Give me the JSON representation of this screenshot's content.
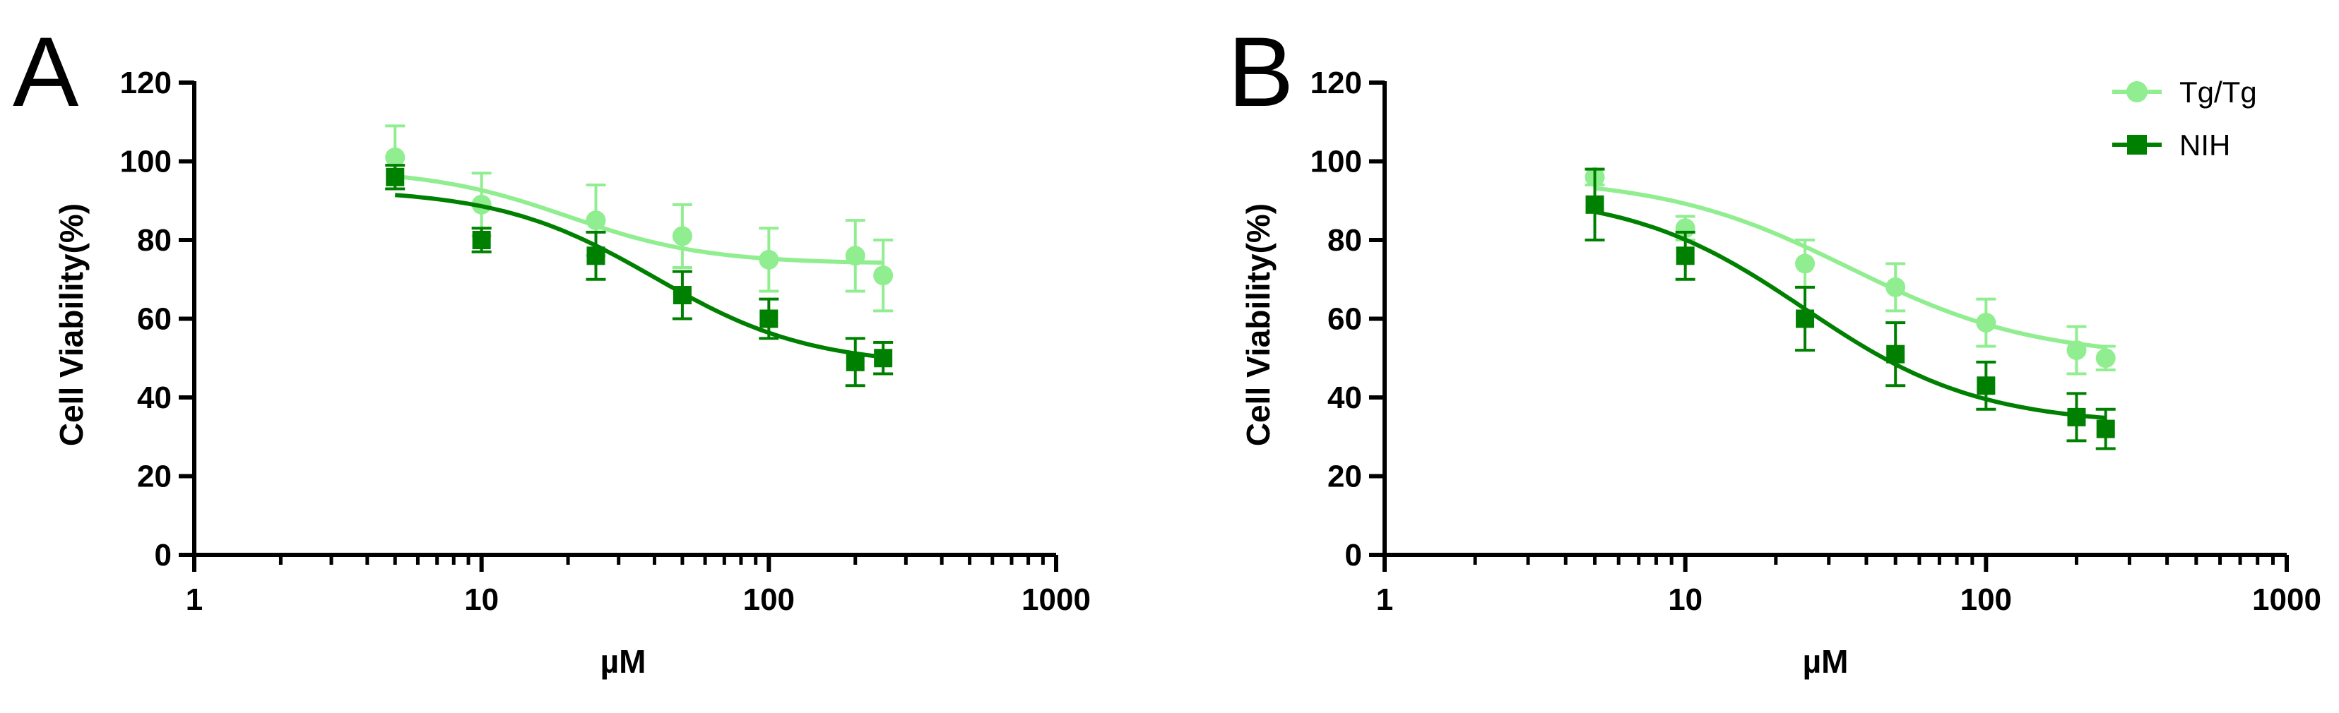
{
  "colors": {
    "tg": "#90EE90",
    "nih": "#008000",
    "axis": "#000000"
  },
  "legend": {
    "placement": "top-right",
    "items": [
      {
        "label": "Tg/Tg",
        "marker": "circle",
        "color": "#90EE90"
      },
      {
        "label": "NIH",
        "marker": "square",
        "color": "#008000"
      }
    ]
  },
  "chart_data": [
    {
      "panel": "A",
      "type": "scatter",
      "xlabel": "µM",
      "ylabel": "Cell Viability(%)",
      "xscale": "log",
      "xlim": [
        1,
        1000
      ],
      "ylim": [
        0,
        120
      ],
      "xticks": [
        1,
        10,
        100,
        1000
      ],
      "yticks": [
        0,
        20,
        40,
        60,
        80,
        100,
        120
      ],
      "grid": false,
      "series": [
        {
          "name": "Tg/Tg",
          "marker": "circle",
          "color": "#90EE90",
          "x": [
            5,
            10,
            25,
            50,
            100,
            200,
            250
          ],
          "y": [
            101,
            89,
            85,
            81,
            75,
            76,
            71
          ],
          "err": [
            8,
            8,
            9,
            8,
            8,
            9,
            9
          ],
          "fit": {
            "top": 98,
            "bottom": 74,
            "ic50": 20,
            "hill": 1.8
          }
        },
        {
          "name": "NIH",
          "marker": "square",
          "color": "#008000",
          "x": [
            5,
            10,
            25,
            50,
            100,
            200,
            250
          ],
          "y": [
            96,
            80,
            76,
            66,
            60,
            49,
            50
          ],
          "err": [
            3,
            3,
            6,
            6,
            5,
            6,
            4
          ],
          "fit": {
            "top": 93,
            "bottom": 48,
            "ic50": 40,
            "hill": 1.6
          }
        }
      ]
    },
    {
      "panel": "B",
      "type": "scatter",
      "xlabel": "µM",
      "ylabel": "Cell Viability(%)",
      "xscale": "log",
      "xlim": [
        1,
        1000
      ],
      "ylim": [
        0,
        120
      ],
      "xticks": [
        1,
        10,
        100,
        1000
      ],
      "yticks": [
        0,
        20,
        40,
        60,
        80,
        100,
        120
      ],
      "grid": false,
      "series": [
        {
          "name": "Tg/Tg",
          "marker": "circle",
          "color": "#90EE90",
          "x": [
            5,
            10,
            25,
            50,
            100,
            200,
            250
          ],
          "y": [
            96,
            83,
            74,
            68,
            59,
            52,
            50
          ],
          "err": [
            2,
            3,
            6,
            6,
            6,
            6,
            3
          ],
          "fit": {
            "top": 96,
            "bottom": 50,
            "ic50": 35,
            "hill": 1.4
          }
        },
        {
          "name": "NIH",
          "marker": "square",
          "color": "#008000",
          "x": [
            5,
            10,
            25,
            50,
            100,
            200,
            250
          ],
          "y": [
            89,
            76,
            60,
            51,
            43,
            35,
            32
          ],
          "err": [
            9,
            6,
            8,
            8,
            6,
            6,
            5
          ],
          "fit": {
            "top": 92,
            "bottom": 33,
            "ic50": 25,
            "hill": 1.5
          }
        }
      ]
    }
  ]
}
